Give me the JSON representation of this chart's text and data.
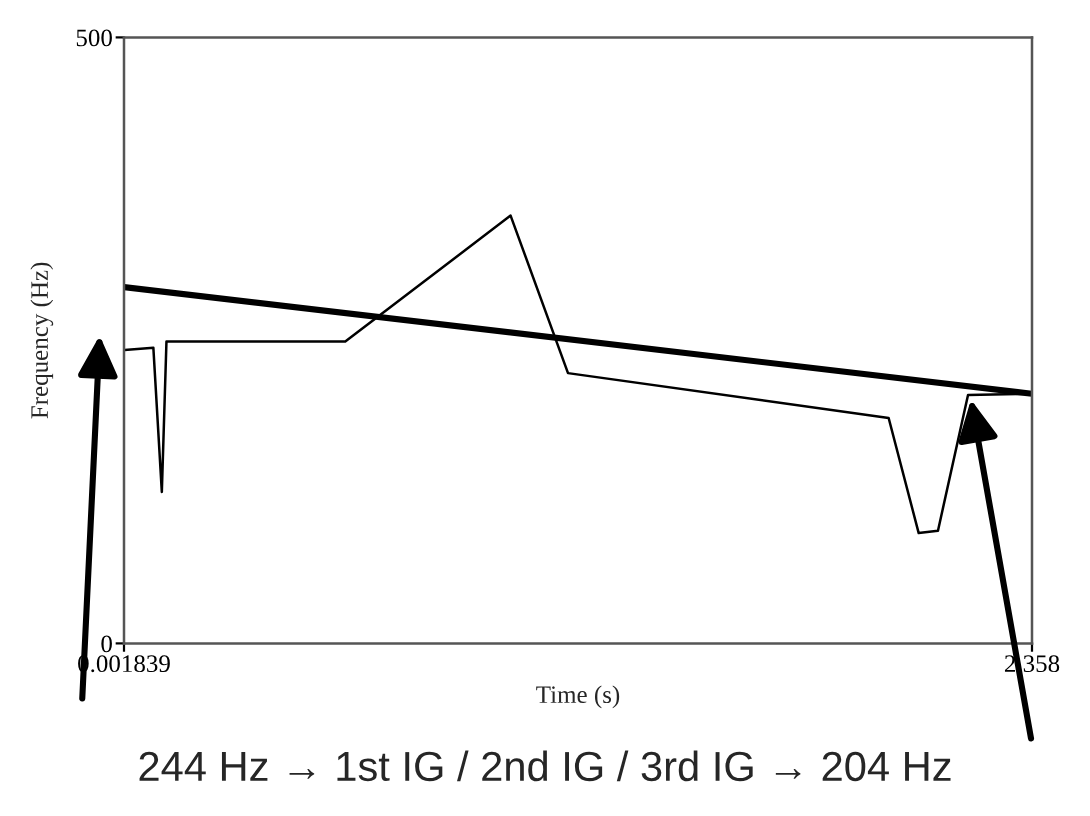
{
  "chart_data": {
    "type": "line",
    "xlabel": "Time (s)",
    "ylabel": "Frequency (Hz)",
    "xlim": [
      0.001839,
      2.358
    ],
    "xticks": [
      0.001839,
      2.358
    ],
    "ylim": [
      0,
      500
    ],
    "yticks": [
      0,
      500
    ],
    "grid": false,
    "legend": false,
    "marker": "none",
    "line_style": "solid",
    "series": [
      {
        "color": "#000000",
        "x": [
          0.0034,
          0.078,
          0.1,
          0.112,
          0.576,
          1.005,
          1.154,
          1.986,
          2.064,
          2.114,
          2.192,
          2.358
        ],
        "values": [
          242,
          244,
          125,
          249,
          249,
          353,
          223,
          186,
          91,
          93,
          205,
          206
        ]
      },
      {
        "type": "line",
        "color": "#000000",
        "x": [
          0.001839,
          2.358
        ],
        "values": [
          294,
          206
        ]
      }
    ],
    "annotations": [
      "244 Hz → 1st IG / 2nd IG / 3rd IG → 204 Hz"
    ]
  }
}
